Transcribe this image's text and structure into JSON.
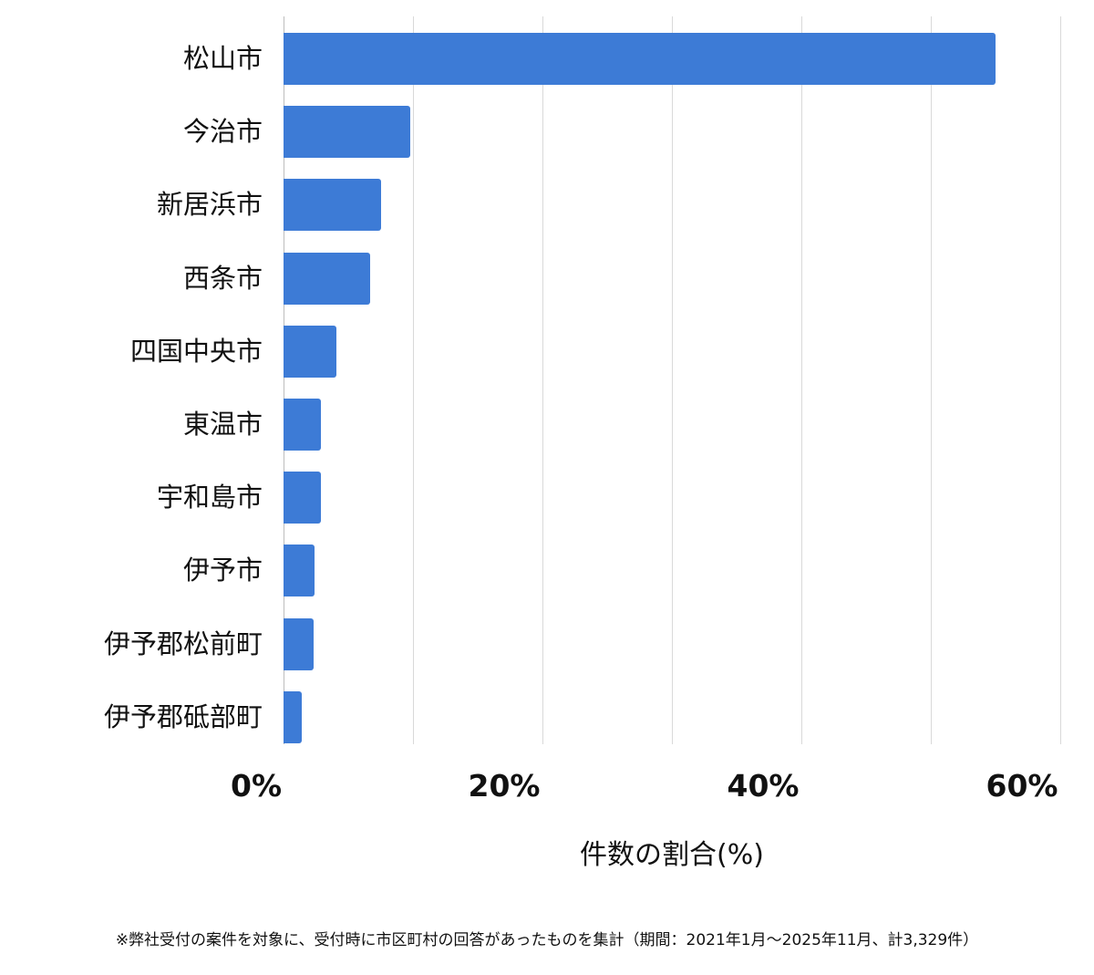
{
  "chart_data": {
    "type": "bar",
    "orientation": "horizontal",
    "title": "",
    "xlabel": "件数の割合(%)",
    "ylabel": "",
    "xlim": [
      0,
      60
    ],
    "x_ticks": [
      "0%",
      "20%",
      "40%",
      "60%"
    ],
    "grid": true,
    "grid_step": 10,
    "legend": null,
    "bar_color": "#3d7bd6",
    "categories": [
      "松山市",
      "今治市",
      "新居浜市",
      "西条市",
      "四国中央市",
      "東温市",
      "宇和島市",
      "伊予市",
      "伊予郡松前町",
      "伊予郡砥部町"
    ],
    "values": [
      55.0,
      9.8,
      7.5,
      6.7,
      4.1,
      2.9,
      2.9,
      2.4,
      2.3,
      1.4
    ],
    "footnote": "※弊社受付の案件を対象に、受付時に市区町村の回答があったものを集計（期間：2021年1月〜2025年11月、計3,329件）"
  }
}
